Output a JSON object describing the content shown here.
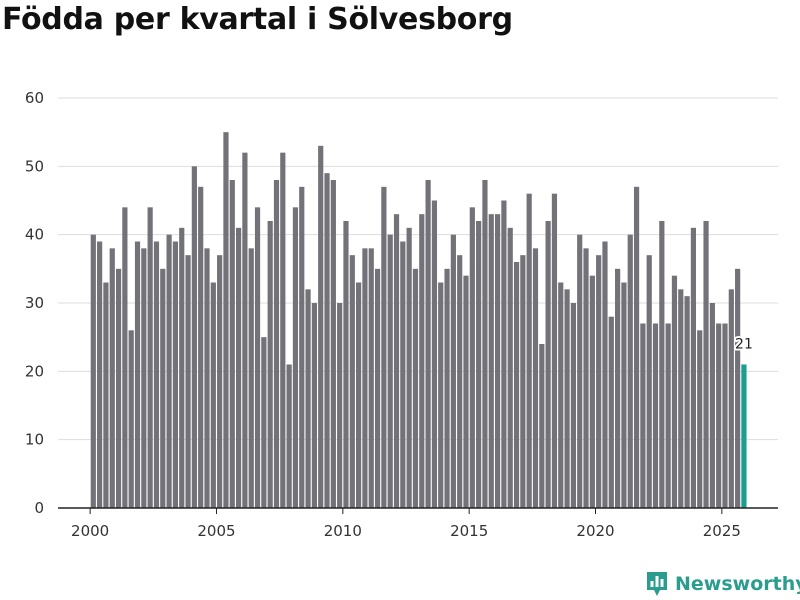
{
  "colors": {
    "bar": "#737278",
    "highlight": "#1a9e8f",
    "grid": "#dddddd",
    "axis": "#222222",
    "brand": "#2a9d8f"
  },
  "brand": {
    "name": "Newsworthy",
    "icon": "bar-chart-icon"
  },
  "chart_data": {
    "type": "bar",
    "title": "Födda per kvartal i Sölvesborg",
    "xlabel": "",
    "ylabel": "",
    "ylim": [
      0,
      60
    ],
    "yticks": [
      0,
      10,
      20,
      30,
      40,
      50,
      60
    ],
    "xticks": [
      2000,
      2005,
      2010,
      2015,
      2020,
      2025
    ],
    "start_year": 2000,
    "periods_per_year": 4,
    "values": [
      40,
      39,
      33,
      38,
      35,
      44,
      26,
      39,
      38,
      44,
      39,
      35,
      40,
      39,
      41,
      37,
      50,
      47,
      38,
      33,
      37,
      55,
      48,
      41,
      52,
      38,
      44,
      25,
      42,
      48,
      52,
      21,
      44,
      47,
      32,
      30,
      53,
      49,
      48,
      30,
      42,
      37,
      33,
      38,
      38,
      35,
      47,
      40,
      43,
      39,
      41,
      35,
      43,
      48,
      45,
      33,
      35,
      40,
      37,
      34,
      44,
      42,
      48,
      43,
      43,
      45,
      41,
      36,
      37,
      46,
      38,
      24,
      42,
      46,
      33,
      32,
      30,
      40,
      38,
      34,
      37,
      39,
      28,
      35,
      33,
      40,
      47,
      27,
      37,
      27,
      42,
      27,
      34,
      32,
      31,
      41,
      26,
      42,
      30,
      27,
      27,
      32,
      35,
      21
    ],
    "highlight_last": true,
    "annotation": "21"
  }
}
